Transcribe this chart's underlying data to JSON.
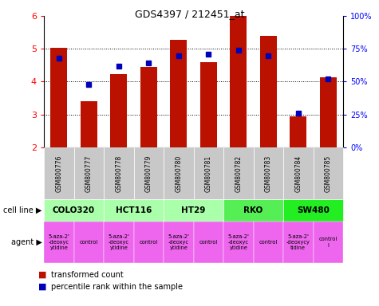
{
  "title": "GDS4397 / 212451_at",
  "samples": [
    "GSM800776",
    "GSM800777",
    "GSM800778",
    "GSM800779",
    "GSM800780",
    "GSM800781",
    "GSM800782",
    "GSM800783",
    "GSM800784",
    "GSM800785"
  ],
  "transformed_counts": [
    5.02,
    3.41,
    4.22,
    4.46,
    5.28,
    4.59,
    6.0,
    5.4,
    2.94,
    4.14
  ],
  "percentile_ranks": [
    68,
    48,
    62,
    64,
    70,
    71,
    74,
    70,
    26,
    52
  ],
  "ylim": [
    2.0,
    6.0
  ],
  "y2lim": [
    0,
    100
  ],
  "yticks": [
    2,
    3,
    4,
    5,
    6
  ],
  "y2ticks": [
    0,
    25,
    50,
    75,
    100
  ],
  "y2ticklabels": [
    "0%",
    "25%",
    "50%",
    "75%",
    "100%"
  ],
  "bar_color": "#bb1100",
  "dot_color": "#0000bb",
  "bar_bottom": 2.0,
  "gsm_bg": "#c8c8c8",
  "cell_line_data": [
    {
      "name": "COLO320",
      "start": 0,
      "end": 2,
      "color": "#aaffaa"
    },
    {
      "name": "HCT116",
      "start": 2,
      "end": 4,
      "color": "#aaffaa"
    },
    {
      "name": "HT29",
      "start": 4,
      "end": 6,
      "color": "#aaffaa"
    },
    {
      "name": "RKO",
      "start": 6,
      "end": 8,
      "color": "#55ee55"
    },
    {
      "name": "SW480",
      "start": 8,
      "end": 10,
      "color": "#22ee22"
    }
  ],
  "agent_data": [
    {
      "name": "5-aza-2'\n-deoxyc\nytidine",
      "start": 0,
      "end": 1,
      "color": "#ee66ee"
    },
    {
      "name": "control",
      "start": 1,
      "end": 2,
      "color": "#ee66ee"
    },
    {
      "name": "5-aza-2'\n-deoxyc\nytidine",
      "start": 2,
      "end": 3,
      "color": "#ee66ee"
    },
    {
      "name": "control",
      "start": 3,
      "end": 4,
      "color": "#ee66ee"
    },
    {
      "name": "5-aza-2'\n-deoxyc\nytidine",
      "start": 4,
      "end": 5,
      "color": "#ee66ee"
    },
    {
      "name": "control",
      "start": 5,
      "end": 6,
      "color": "#ee66ee"
    },
    {
      "name": "5-aza-2'\n-deoxyc\nytidine",
      "start": 6,
      "end": 7,
      "color": "#ee66ee"
    },
    {
      "name": "control",
      "start": 7,
      "end": 8,
      "color": "#ee66ee"
    },
    {
      "name": "5-aza-2'\n-deoxycy\ntidine",
      "start": 8,
      "end": 9,
      "color": "#ee66ee"
    },
    {
      "name": "control\nl",
      "start": 9,
      "end": 10,
      "color": "#ee66ee"
    }
  ],
  "legend_red": "transformed count",
  "legend_blue": "percentile rank within the sample",
  "cell_line_label": "cell line",
  "agent_label": "agent"
}
